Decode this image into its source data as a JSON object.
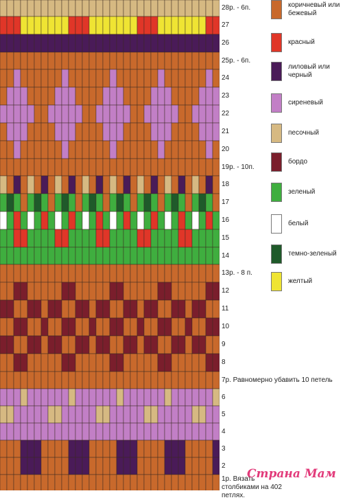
{
  "colors": {
    "brown": "#c8692c",
    "red": "#e03628",
    "purple": "#4a1b58",
    "lilac": "#c27fc6",
    "sand": "#d6b982",
    "bordeaux": "#7a1e2c",
    "green": "#3fae3f",
    "white": "#ffffff",
    "darkgreen": "#1f5a2a",
    "yellow": "#efe433"
  },
  "row_labels": [
    {
      "key": "28",
      "text": "28р. - 6п."
    },
    {
      "key": "27",
      "text": "27"
    },
    {
      "key": "26",
      "text": "26"
    },
    {
      "key": "25",
      "text": "25р. - 6п."
    },
    {
      "key": "24",
      "text": "24"
    },
    {
      "key": "23",
      "text": "23"
    },
    {
      "key": "22",
      "text": "22"
    },
    {
      "key": "21",
      "text": "21"
    },
    {
      "key": "20",
      "text": "20"
    },
    {
      "key": "19",
      "text": "19р. - 10п."
    },
    {
      "key": "18",
      "text": "18"
    },
    {
      "key": "17",
      "text": "17"
    },
    {
      "key": "16",
      "text": "16"
    },
    {
      "key": "15",
      "text": "15"
    },
    {
      "key": "14",
      "text": "14"
    },
    {
      "key": "13",
      "text": "13р. - 8 п."
    },
    {
      "key": "12",
      "text": "12"
    },
    {
      "key": "11",
      "text": "11"
    },
    {
      "key": "10",
      "text": "10"
    },
    {
      "key": "9",
      "text": "9"
    },
    {
      "key": "8",
      "text": "8"
    },
    {
      "key": "7",
      "text": "7р. Равномерно убавить 10 петель"
    },
    {
      "key": "6",
      "text": "6"
    },
    {
      "key": "5",
      "text": "5"
    },
    {
      "key": "4",
      "text": "4"
    },
    {
      "key": "3",
      "text": "3"
    },
    {
      "key": "2",
      "text": "2"
    },
    {
      "key": "1",
      "text": "1р. Вязать столбиками на 402 петлях."
    }
  ],
  "legend": [
    {
      "color": "brown",
      "label": "коричневый или бежевый"
    },
    {
      "color": "red",
      "label": "красный"
    },
    {
      "color": "purple",
      "label": "лиловый или черный"
    },
    {
      "color": "lilac",
      "label": "сиреневый"
    },
    {
      "color": "sand",
      "label": "песочный"
    },
    {
      "color": "bordeaux",
      "label": "бордо"
    },
    {
      "color": "green",
      "label": "зеленый"
    },
    {
      "color": "white",
      "label": "белый"
    },
    {
      "color": "darkgreen",
      "label": "темно-зеленый"
    },
    {
      "color": "yellow",
      "label": "желтый"
    }
  ],
  "watermark": "Страна Мам"
}
